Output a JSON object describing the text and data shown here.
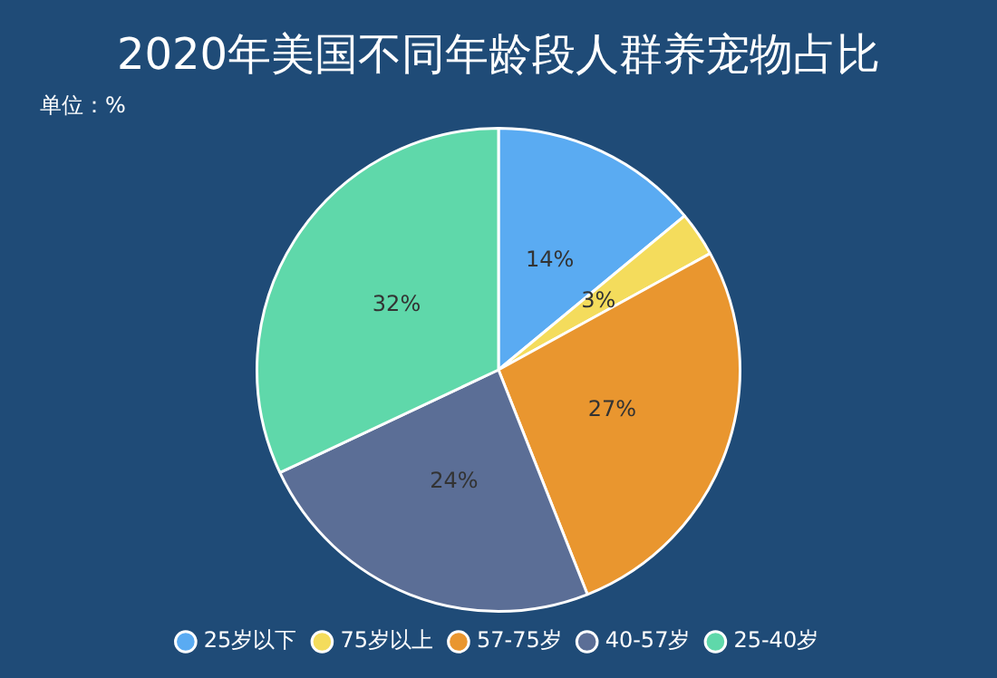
{
  "chart_data": {
    "type": "pie",
    "title": "2020年美国不同年龄段人群养宠物占比",
    "annotations": [
      "单位：%"
    ],
    "categories": [
      "25岁以下",
      "75岁以上",
      "57-75岁",
      "40-57岁",
      "25-40岁"
    ],
    "values": [
      14,
      3,
      27,
      24,
      32
    ],
    "colors": [
      "#5aabf2",
      "#f4dc5c",
      "#e9962f",
      "#5b6e96",
      "#5fd8aa"
    ],
    "value_labels": [
      "14%",
      "3%",
      "27%",
      "24%",
      "32%"
    ],
    "legend": "bottom"
  }
}
